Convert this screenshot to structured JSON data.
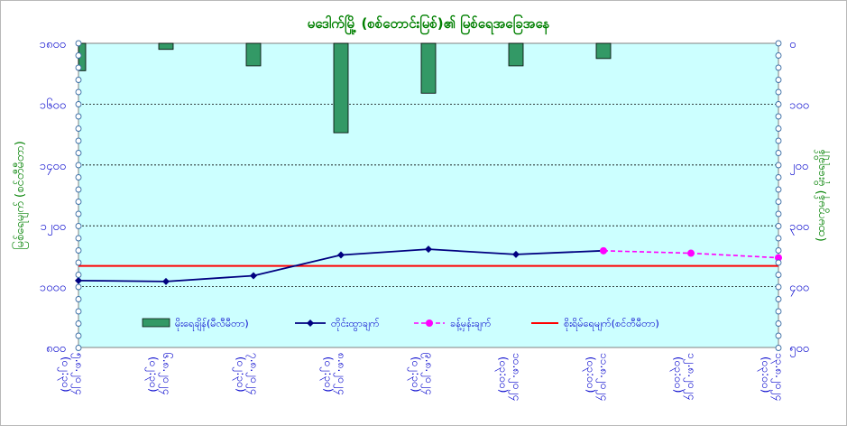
{
  "chart_data": {
    "type": "bar",
    "title": "မဒေါက်မြို့ (စစ်တောင်းမြစ်)၏ မြစ်ရေအခြေအနေ",
    "ylabel_left": "မြစ်ရေမျက် (စင်တီမီတာ)",
    "ylabel_right": "(ထမကွမန်) မိုးရေချိန်",
    "yticks_left": [
      "၁၈၀၀",
      "၁၆၀၀",
      "၁၄၀၀",
      "၁၂၀၀",
      "၁၀၀၀",
      "၈၀၀"
    ],
    "yticks_right": [
      "၀",
      "၁၀၀",
      "၂၀၀",
      "၃၀၀",
      "၄၀၀",
      "၅၀၀"
    ],
    "ylim_left": [
      800,
      1800
    ],
    "ylim_right": [
      500,
      0
    ],
    "categories": [
      {
        "line1": "၅.၈.၂၀၂၄",
        "line2": "(၀၂:၃၀)"
      },
      {
        "line1": "၆.၈.၂၀၂၄",
        "line2": "(၀၂:၃၀)"
      },
      {
        "line1": "၇.၈.၂၀၂၄",
        "line2": "(၀၂:၃၀)"
      },
      {
        "line1": "၈.၈.၂၀၂၄",
        "line2": "(၀၂:၃၀)"
      },
      {
        "line1": "၉.၈.၂၀၂၄",
        "line2": "(၀၂:၃၀)"
      },
      {
        "line1": "၁၀.၈.၂၀၂၄",
        "line2": "(၀၃:၀၀)"
      },
      {
        "line1": "၁၁.၈.၂၀၂၄",
        "line2": "(၀၃:၀၀)"
      },
      {
        "line1": "၁၂.၈.၂၀၂၄",
        "line2": "(၀၃:၀၀)"
      },
      {
        "line1": "၁၃.၈.၂၀၂၄",
        "line2": "(၀၃:၀၀)"
      }
    ],
    "series": [
      {
        "name": "မိုးရေချိန်(မီလီမီတာ)",
        "kind": "bar",
        "axis": "right",
        "color": "#339966",
        "values": [
          45,
          10,
          37,
          147,
          82,
          37,
          25,
          null,
          null
        ]
      },
      {
        "name": "တိုင်းထွာချက်",
        "kind": "line",
        "axis": "left",
        "color": "#000080",
        "values": [
          1020,
          1017,
          1036,
          1104,
          1123,
          1106,
          1118,
          null,
          null
        ]
      },
      {
        "name": "ခန့်မှန်းချက်",
        "kind": "dashed-line",
        "axis": "left",
        "color": "#ff00ff",
        "values": [
          null,
          null,
          null,
          null,
          null,
          null,
          1118,
          1110,
          1095
        ]
      },
      {
        "name": "စိုးရိမ်ရေမျက်(စင်တီမီတာ)",
        "kind": "hline",
        "axis": "left",
        "color": "#ff0000",
        "values": [
          1068,
          1068,
          1068,
          1068,
          1068,
          1068,
          1068,
          1068,
          1068
        ]
      }
    ],
    "grid": true,
    "legend": "inside-bottom",
    "colors": {
      "plot_bg": "#ccffff",
      "axis_text": "#0000cc",
      "title": "#008000",
      "gridline": "#000000"
    }
  }
}
